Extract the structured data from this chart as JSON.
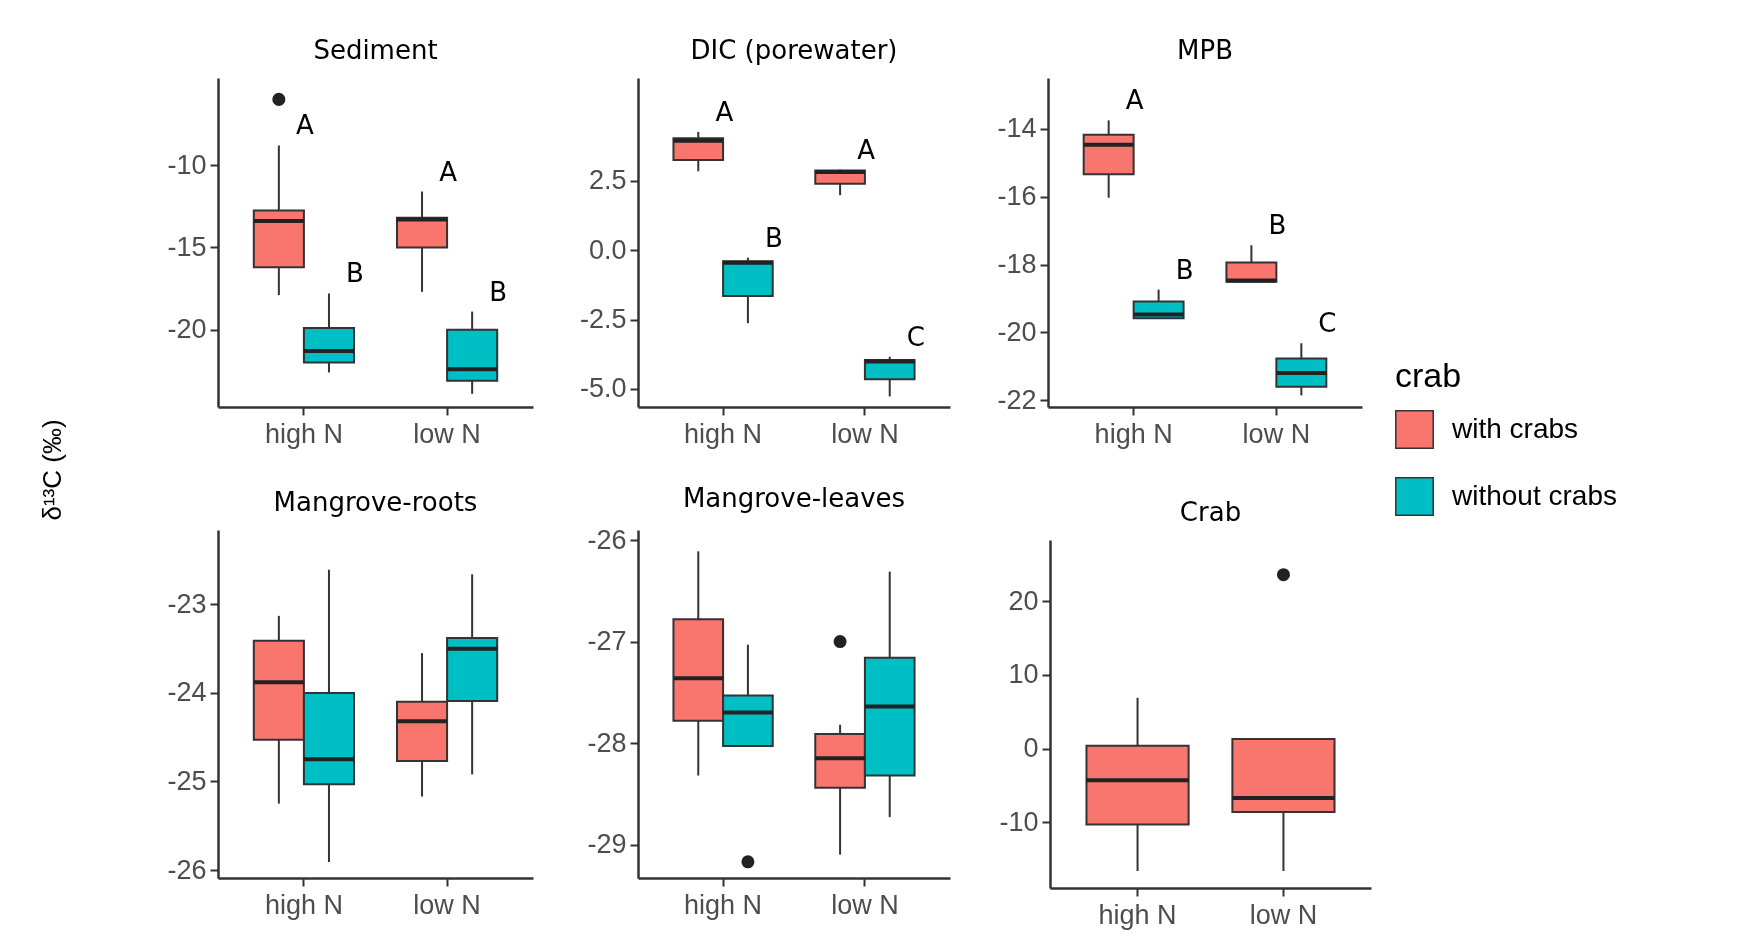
{
  "chart_data": [
    {
      "type": "box",
      "title": "Sediment",
      "ylabel": "δ¹³C (‰)",
      "categories": [
        "high N",
        "low N"
      ],
      "ylim": [
        -24.7,
        -4.7
      ],
      "yticks": [
        -20,
        -15,
        -10
      ],
      "series": [
        {
          "color": "#f8766d",
          "boxes": [
            {
              "low": -17.9,
              "q1": -16.2,
              "median": -13.4,
              "q3": -12.75,
              "high": -8.8,
              "outliers": [
                -6.0
              ]
            },
            {
              "low": -17.7,
              "q1": -15.0,
              "median": -13.3,
              "q3": -13.2,
              "high": -11.6
            }
          ]
        },
        {
          "color": "#00bfc4",
          "boxes": [
            {
              "low": -22.6,
              "q1": -22.0,
              "median": -21.3,
              "q3": -19.9,
              "high": -17.8
            },
            {
              "low": -23.9,
              "q1": -23.1,
              "median": -22.4,
              "q3": -20.0,
              "high": -18.9
            }
          ]
        }
      ],
      "annotations": [
        "A",
        "A",
        "B",
        "B"
      ]
    },
    {
      "type": "box",
      "title": "DIC (porewater)",
      "categories": [
        "high N",
        "low N"
      ],
      "ylim": [
        -5.65,
        6.2
      ],
      "yticks": [
        {
          "value": -5,
          "label": "-5.0"
        },
        {
          "value": -2.5,
          "label": "-2.5"
        },
        {
          "value": 0,
          "label": "0.0"
        },
        {
          "value": 2.5,
          "label": "2.5"
        }
      ],
      "series": [
        {
          "color": "#f8766d",
          "boxes": [
            {
              "low": 2.84,
              "q1": 3.25,
              "median": 3.94,
              "q3": 4.03,
              "high": 4.26
            },
            {
              "low": 1.98,
              "q1": 2.39,
              "median": 2.81,
              "q3": 2.87,
              "high": 2.9
            }
          ]
        },
        {
          "color": "#00bfc4",
          "boxes": [
            {
              "low": -2.63,
              "q1": -1.65,
              "median": -0.45,
              "q3": -0.4,
              "high": -0.27
            },
            {
              "low": -5.27,
              "q1": -4.65,
              "median": -4.01,
              "q3": -3.96,
              "high": -3.84
            }
          ]
        }
      ],
      "annotations": [
        "A",
        "A",
        "B",
        "C"
      ]
    },
    {
      "type": "box",
      "title": "MPB",
      "legend": "right",
      "legend_title": "crab",
      "categories": [
        "high N",
        "low N"
      ],
      "ylim": [
        -22.2,
        -12.5
      ],
      "yticks": [
        -22,
        -20,
        -18,
        -16,
        -14
      ],
      "series": [
        {
          "name": "with crabs",
          "color": "#f8766d",
          "boxes": [
            {
              "low": -16.03,
              "q1": -15.34,
              "median": -14.47,
              "q3": -14.17,
              "high": -13.75
            },
            {
              "low": -18.51,
              "q1": -18.51,
              "median": -18.47,
              "q3": -17.94,
              "high": -17.43
            }
          ]
        },
        {
          "name": "without crabs",
          "color": "#00bfc4",
          "boxes": [
            {
              "low": -19.58,
              "q1": -19.58,
              "median": -19.47,
              "q3": -19.09,
              "high": -18.74
            },
            {
              "low": -21.86,
              "q1": -21.6,
              "median": -21.2,
              "q3": -20.77,
              "high": -20.32
            }
          ]
        }
      ],
      "annotations": [
        "A",
        "B",
        "B",
        "C"
      ]
    },
    {
      "type": "box",
      "title": "Mangrove-roots",
      "categories": [
        "high N",
        "low N"
      ],
      "ylim": [
        -26.09,
        -22.16
      ],
      "yticks": [
        -26,
        -25,
        -24,
        -23
      ],
      "series": [
        {
          "color": "#f8766d",
          "boxes": [
            {
              "low": -25.25,
              "q1": -24.53,
              "median": -23.88,
              "q3": -23.41,
              "high": -23.13
            },
            {
              "low": -25.17,
              "q1": -24.77,
              "median": -24.32,
              "q3": -24.1,
              "high": -23.55
            }
          ]
        },
        {
          "color": "#00bfc4",
          "boxes": [
            {
              "low": -25.91,
              "q1": -25.03,
              "median": -24.75,
              "q3": -24.0,
              "high": -22.61
            },
            {
              "low": -24.92,
              "q1": -24.09,
              "median": -23.5,
              "q3": -23.38,
              "high": -22.66
            }
          ]
        }
      ]
    },
    {
      "type": "box",
      "title": "Mangrove-leaves",
      "categories": [
        "high N",
        "low N"
      ],
      "ylim": [
        -29.33,
        -25.9
      ],
      "yticks": [
        -29,
        -28,
        -27,
        -26
      ],
      "series": [
        {
          "color": "#f8766d",
          "boxes": [
            {
              "low": -28.32,
              "q1": -27.78,
              "median": -27.36,
              "q3": -26.78,
              "high": -26.11
            },
            {
              "low": -29.1,
              "q1": -28.44,
              "median": -28.15,
              "q3": -27.91,
              "high": -27.82,
              "outliers": [
                -27.0
              ]
            }
          ]
        },
        {
          "color": "#00bfc4",
          "boxes": [
            {
              "low": -28.03,
              "q1": -28.03,
              "median": -27.7,
              "q3": -27.53,
              "high": -27.03,
              "outliers": [
                -29.17
              ]
            },
            {
              "low": -28.73,
              "q1": -28.32,
              "median": -27.64,
              "q3": -27.16,
              "high": -26.31
            }
          ]
        }
      ]
    },
    {
      "type": "box",
      "title": "Crab",
      "categories": [
        "high N",
        "low N"
      ],
      "ylim": [
        -18.9,
        28.3
      ],
      "yticks": [
        -10,
        0,
        10,
        20
      ],
      "series": [
        {
          "color": "#f8766d",
          "boxes": [
            {
              "low": -16.6,
              "q1": -10.3,
              "median": -4.3,
              "q3": 0.4,
              "high": 6.9
            },
            {
              "low": -16.6,
              "q1": -8.6,
              "median": -6.7,
              "q3": 1.3,
              "high": 1.3,
              "outliers": [
                23.6
              ]
            }
          ]
        }
      ]
    }
  ]
}
